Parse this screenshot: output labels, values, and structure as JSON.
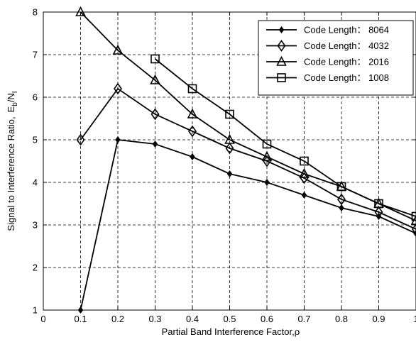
{
  "chart_data": {
    "type": "line",
    "xlabel": "Partial Band Interference Factor,",
    "xlabel_symbol": "ρ",
    "ylabel": "Signal to Interference Ratio,",
    "ylabel_symbol": "E",
    "ylabel_sub1": "b",
    "ylabel_sep": "/N",
    "ylabel_sub2": "I",
    "xlim": [
      0,
      1
    ],
    "ylim": [
      1,
      8
    ],
    "xticks": [
      "0",
      "0.1",
      "0.2",
      "0.3",
      "0.4",
      "0.5",
      "0.6",
      "0.7",
      "0.8",
      "0.9",
      "1"
    ],
    "yticks": [
      "1",
      "2",
      "3",
      "4",
      "5",
      "6",
      "7",
      "8"
    ],
    "grid": true,
    "legend_position": "top-right",
    "series": [
      {
        "name": "Code Length：  8064",
        "marker": "filled-diamond",
        "x": [
          0.1,
          0.2,
          0.3,
          0.4,
          0.5,
          0.6,
          0.7,
          0.8,
          0.9,
          1.0
        ],
        "y": [
          1.0,
          5.0,
          4.9,
          4.6,
          4.2,
          4.0,
          3.7,
          3.4,
          3.2,
          2.8
        ]
      },
      {
        "name": "Code Length：  4032",
        "marker": "diamond",
        "x": [
          0.1,
          0.2,
          0.3,
          0.4,
          0.5,
          0.6,
          0.7,
          0.8,
          0.9,
          1.0
        ],
        "y": [
          5.0,
          6.2,
          5.6,
          5.2,
          4.8,
          4.5,
          4.1,
          3.6,
          3.3,
          2.9
        ]
      },
      {
        "name": "Code Length：  2016",
        "marker": "triangle",
        "x": [
          0.1,
          0.2,
          0.3,
          0.4,
          0.5,
          0.6,
          0.7,
          0.8,
          0.9,
          1.0
        ],
        "y": [
          8.0,
          7.1,
          6.4,
          5.6,
          5.0,
          4.6,
          4.2,
          3.9,
          3.5,
          3.1
        ]
      },
      {
        "name": "Code Length：  1008",
        "marker": "square",
        "x": [
          0.3,
          0.4,
          0.5,
          0.6,
          0.7,
          0.8,
          0.9,
          1.0
        ],
        "y": [
          6.9,
          6.2,
          5.6,
          4.9,
          4.5,
          3.9,
          3.5,
          3.2
        ]
      }
    ]
  }
}
